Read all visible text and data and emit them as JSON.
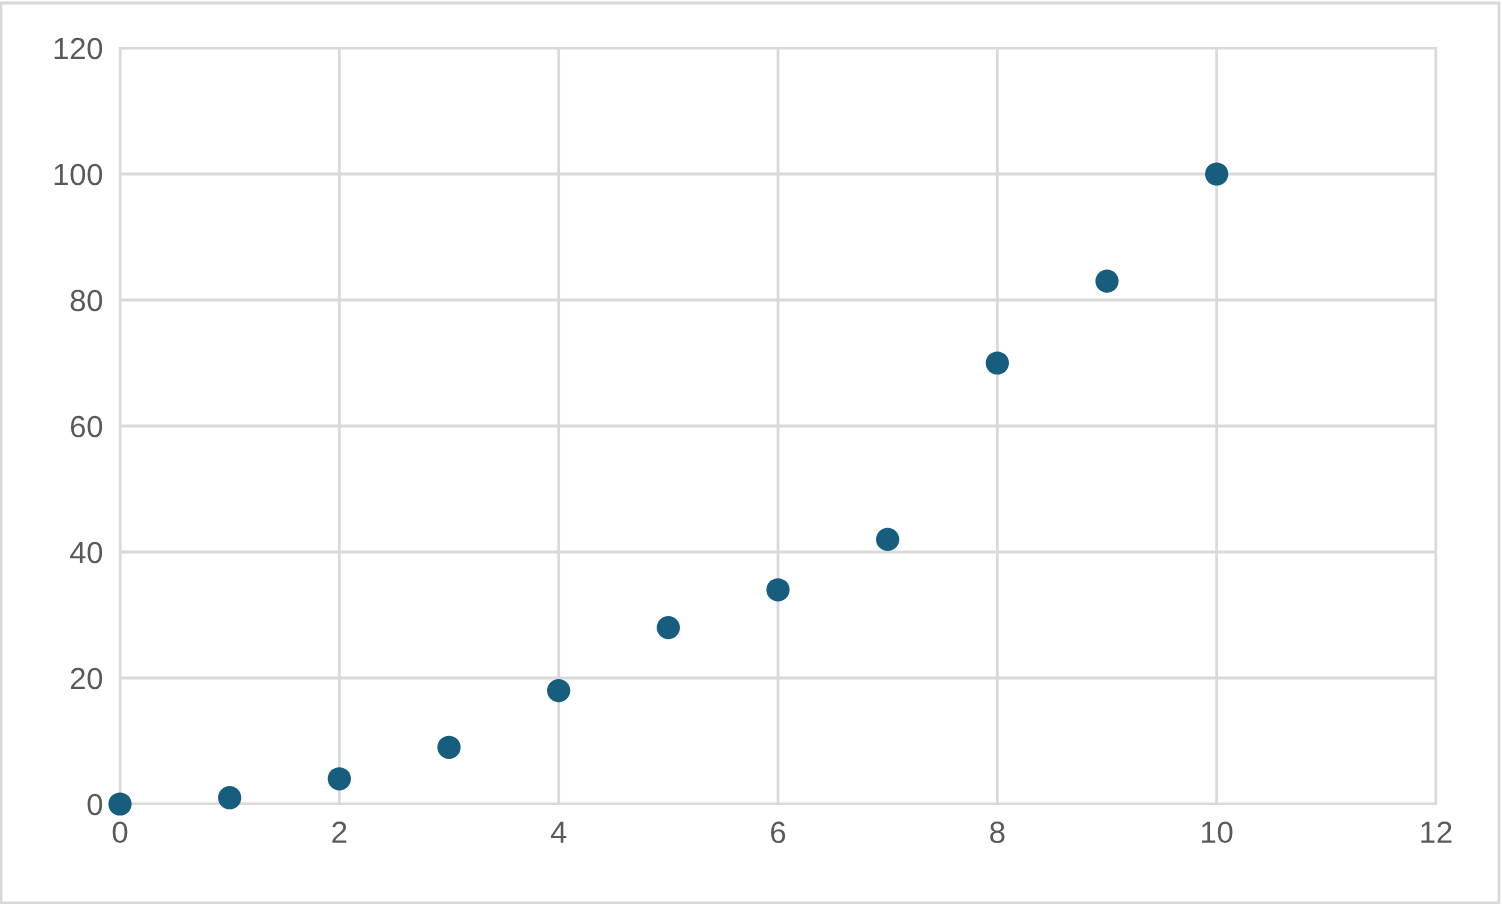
{
  "chart_data": {
    "type": "scatter",
    "x": [
      0,
      1,
      2,
      3,
      4,
      5,
      6,
      7,
      8,
      9,
      10
    ],
    "series": [
      {
        "color": "#175d7e",
        "values": [
          0,
          1,
          4,
          9,
          18,
          28,
          34,
          42,
          70,
          83,
          100
        ]
      }
    ],
    "xlim": [
      0,
      12
    ],
    "xticks": [
      0,
      2,
      4,
      6,
      8,
      10,
      12
    ],
    "ylim": [
      0,
      120
    ],
    "yticks": [
      0,
      20,
      40,
      60,
      80,
      100,
      120
    ],
    "grid": true,
    "marker": "circle"
  }
}
